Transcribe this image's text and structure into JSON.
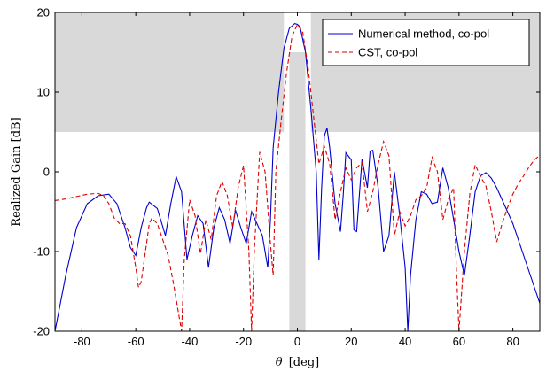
{
  "chart_data": {
    "type": "line",
    "xlabel_symbol": "θ",
    "xlabel_unit": "[deg]",
    "ylabel": "Realized Gain [dB]",
    "xlim": [
      -90,
      90
    ],
    "ylim": [
      -20,
      20
    ],
    "xticks": [
      -80,
      -60,
      -40,
      -20,
      0,
      20,
      40,
      60,
      80
    ],
    "yticks": [
      -20,
      -10,
      0,
      10,
      20
    ],
    "grid": false,
    "legend": "top-right",
    "mask_regions": [
      {
        "x": [
          -90,
          -5
        ],
        "y": [
          5,
          20
        ]
      },
      {
        "x": [
          5,
          90
        ],
        "y": [
          5,
          20
        ]
      },
      {
        "x": [
          -3,
          3
        ],
        "y": [
          -20,
          15
        ]
      }
    ],
    "series": [
      {
        "name": "Numerical method, co-pol",
        "color": "#0000cc",
        "dash": "solid",
        "x": [
          -90,
          -86,
          -82,
          -78,
          -74,
          -70,
          -67,
          -64,
          -62,
          -60,
          -58,
          -56,
          -55,
          -52,
          -49,
          -47,
          -45,
          -43,
          -41,
          -39,
          -37,
          -35,
          -33,
          -31,
          -29,
          -27,
          -25,
          -23,
          -21,
          -19,
          -17,
          -15,
          -13,
          -11,
          -10,
          -9,
          -7,
          -5,
          -3,
          -1,
          0,
          1,
          3,
          5,
          7,
          8,
          9,
          10,
          11,
          12,
          14,
          16,
          17,
          18,
          20,
          21,
          22,
          24,
          26,
          27,
          28,
          30,
          32,
          34,
          36,
          38,
          40,
          41,
          42,
          44,
          46,
          48,
          50,
          52,
          54,
          56,
          58,
          60,
          62,
          64,
          66,
          68,
          70,
          72,
          74,
          76,
          78,
          80,
          82,
          84,
          86,
          88,
          90
        ],
        "y": [
          -20,
          -13,
          -7,
          -4,
          -3,
          -2.8,
          -4,
          -7,
          -9.5,
          -10.5,
          -7,
          -4.5,
          -3.8,
          -4.6,
          -8,
          -4,
          -0.6,
          -2.5,
          -11,
          -8,
          -5.5,
          -6.5,
          -12,
          -7,
          -4.5,
          -6,
          -9,
          -4.8,
          -7,
          -9,
          -5,
          -6.5,
          -8,
          -12,
          -6,
          3,
          10,
          15.5,
          18,
          18.6,
          18.5,
          18.2,
          15,
          8,
          0,
          -11,
          -2,
          4.5,
          5.5,
          3,
          -4,
          -7.5,
          -3,
          2.4,
          1.5,
          -7.3,
          -7.5,
          1.6,
          -2,
          2.6,
          2.7,
          -2,
          -10,
          -8,
          0,
          -5.5,
          -12,
          -20,
          -13,
          -6,
          -2.5,
          -2.8,
          -4,
          -3.8,
          0.5,
          -2,
          -6,
          -10,
          -13,
          -8,
          -2.5,
          -0.5,
          -0.1,
          -0.8,
          -2,
          -3.5,
          -5,
          -6.5,
          -8.5,
          -10.5,
          -12.5,
          -14.5,
          -16.5
        ]
      },
      {
        "name": "CST, co-pol",
        "color": "#dd0000",
        "dash": "dashed",
        "x": [
          -90,
          -86,
          -82,
          -78,
          -74,
          -72,
          -70,
          -68,
          -66,
          -64,
          -62,
          -60,
          -59,
          -58,
          -56,
          -55,
          -54,
          -52,
          -50,
          -48,
          -46,
          -44,
          -43,
          -42,
          -40,
          -38,
          -36,
          -34,
          -32,
          -30,
          -28,
          -26,
          -24,
          -22,
          -20,
          -18,
          -17,
          -16,
          -14,
          -12,
          -10,
          -9,
          -8,
          -6,
          -4,
          -2,
          0,
          2,
          4,
          6,
          8,
          10,
          12,
          14,
          16,
          18,
          20,
          22,
          24,
          26,
          28,
          30,
          32,
          34,
          36,
          38,
          40,
          42,
          44,
          46,
          48,
          50,
          52,
          54,
          56,
          58,
          59,
          60,
          62,
          64,
          66,
          68,
          70,
          72,
          74,
          76,
          78,
          80,
          82,
          84,
          86,
          88,
          90
        ],
        "y": [
          -3.6,
          -3.4,
          -3.1,
          -2.8,
          -2.7,
          -3,
          -4,
          -5.8,
          -6.5,
          -6.5,
          -8,
          -12,
          -14.5,
          -13.8,
          -9,
          -6.5,
          -5.8,
          -6.5,
          -8.5,
          -10.5,
          -14,
          -18,
          -20,
          -11,
          -3.5,
          -5.5,
          -10.3,
          -6,
          -8.5,
          -3,
          -1.2,
          -3,
          -7,
          -2,
          0.8,
          -10,
          -20,
          -10,
          2.5,
          0,
          -9,
          -13,
          0,
          6.5,
          12.5,
          17,
          18.5,
          17.5,
          13,
          7,
          1,
          3.2,
          1,
          -6,
          -2.5,
          0.5,
          -1,
          0.5,
          1.2,
          -5,
          -2.5,
          1,
          3.8,
          2,
          -8,
          -5,
          -6.8,
          -5.5,
          -3.5,
          -3,
          -2,
          1.8,
          0,
          -6,
          -3.5,
          -2,
          -12,
          -20,
          -10,
          -2.8,
          0.9,
          -0.6,
          -1.8,
          -5,
          -8.8,
          -6.5,
          -4.5,
          -2.8,
          -1.5,
          -0.5,
          0.6,
          1.5,
          2.1
        ]
      }
    ]
  }
}
